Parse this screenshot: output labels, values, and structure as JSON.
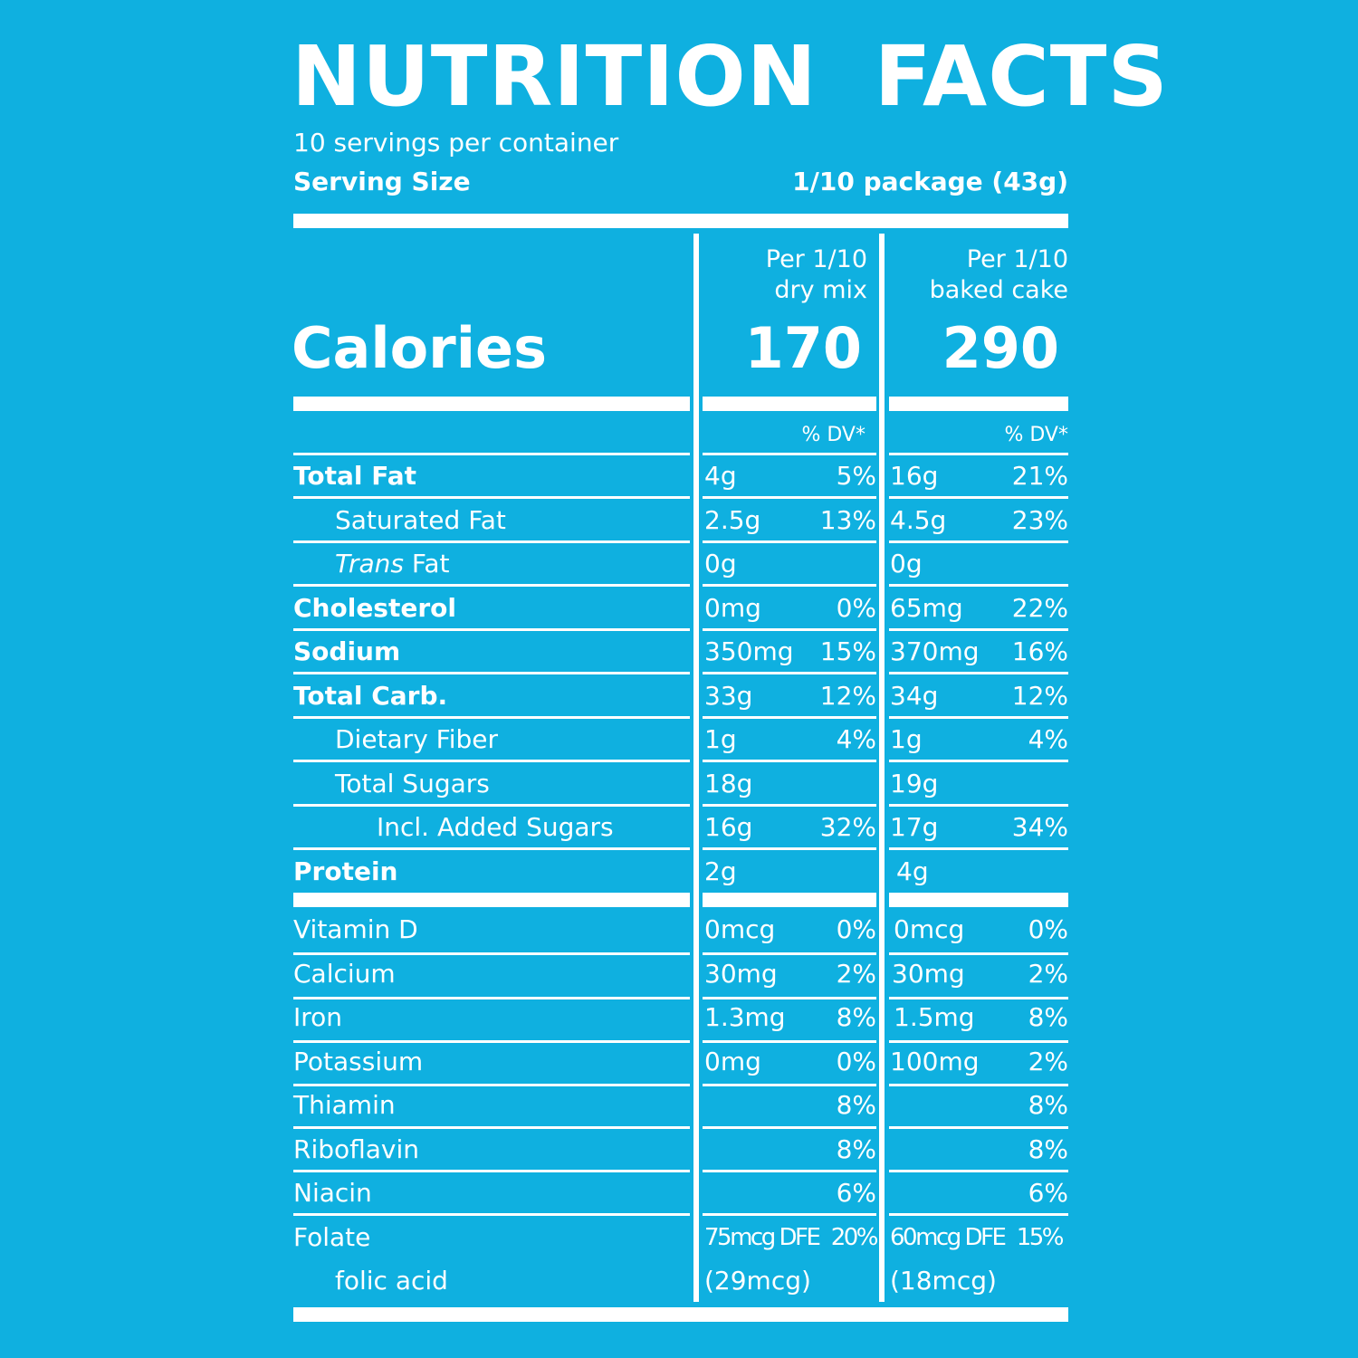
{
  "title": "NUTRITION FACTS",
  "servings_per_container": "10 servings per container",
  "serving_size": {
    "label": "Serving Size",
    "value": "1/10 package (43g)"
  },
  "columns": [
    {
      "line1": "Per 1/10",
      "line2": "dry mix",
      "calories": "170",
      "dv_header": "% DV*"
    },
    {
      "line1": "Per 1/10",
      "line2": "baked cake",
      "calories": "290",
      "dv_header": "% DV*"
    }
  ],
  "calories_label": "Calories",
  "trans_fat": {
    "italic": "Trans",
    "rest": " Fat"
  },
  "rows": [
    {
      "label": "Total Fat",
      "c1_amt": "4g",
      "c1_dv": "5%",
      "c2_amt": "16g",
      "c2_dv": "21%"
    },
    {
      "label": "Saturated Fat",
      "c1_amt": "2.5g",
      "c1_dv": "13%",
      "c2_amt": "4.5g",
      "c2_dv": "23%"
    },
    {
      "label": "Trans Fat",
      "c1_amt": "0g",
      "c1_dv": "",
      "c2_amt": "0g",
      "c2_dv": ""
    },
    {
      "label": "Cholesterol",
      "c1_amt": "0mg",
      "c1_dv": "0%",
      "c2_amt": "65mg",
      "c2_dv": "22%"
    },
    {
      "label": "Sodium",
      "c1_amt": "350mg",
      "c1_dv": "15%",
      "c2_amt": "370mg",
      "c2_dv": "16%"
    },
    {
      "label": "Total Carb.",
      "c1_amt": "33g",
      "c1_dv": "12%",
      "c2_amt": "34g",
      "c2_dv": "12%"
    },
    {
      "label": "Dietary Fiber",
      "c1_amt": "1g",
      "c1_dv": "4%",
      "c2_amt": "1g",
      "c2_dv": "4%"
    },
    {
      "label": "Total Sugars",
      "c1_amt": "18g",
      "c1_dv": "",
      "c2_amt": "19g",
      "c2_dv": ""
    },
    {
      "label": "Incl. Added Sugars",
      "c1_amt": "16g",
      "c1_dv": "32%",
      "c2_amt": "17g",
      "c2_dv": "34%"
    },
    {
      "label": "Protein",
      "c1_amt": "2g",
      "c1_dv": "",
      "c2_amt": "4g",
      "c2_dv": ""
    },
    {
      "label": "Vitamin D",
      "c1_amt": "0mcg",
      "c1_dv": "0%",
      "c2_amt": "0mcg",
      "c2_dv": "0%"
    },
    {
      "label": "Calcium",
      "c1_amt": "30mg",
      "c1_dv": "2%",
      "c2_amt": "30mg",
      "c2_dv": "2%"
    },
    {
      "label": "Iron",
      "c1_amt": "1.3mg",
      "c1_dv": "8%",
      "c2_amt": "1.5mg",
      "c2_dv": "8%"
    },
    {
      "label": "Potassium",
      "c1_amt": "0mg",
      "c1_dv": "0%",
      "c2_amt": "100mg",
      "c2_dv": "2%"
    },
    {
      "label": "Thiamin",
      "c1_amt": "",
      "c1_dv": "8%",
      "c2_amt": "",
      "c2_dv": "8%"
    },
    {
      "label": "Riboflavin",
      "c1_amt": "",
      "c1_dv": "8%",
      "c2_amt": "",
      "c2_dv": "8%"
    },
    {
      "label": "Niacin",
      "c1_amt": "",
      "c1_dv": "6%",
      "c2_amt": "",
      "c2_dv": "6%"
    },
    {
      "label": "Folate",
      "c1_amt": "75mcg DFE",
      "c1_dv": "20%",
      "c2_amt": "60mcg DFE",
      "c2_dv": "15%"
    },
    {
      "label": "folic acid",
      "c1_amt": "(29mcg)",
      "c1_dv": "",
      "c2_amt": "(18mcg)",
      "c2_dv": ""
    }
  ],
  "colors": {
    "background": "#0fb0e0",
    "foreground": "#ffffff"
  }
}
